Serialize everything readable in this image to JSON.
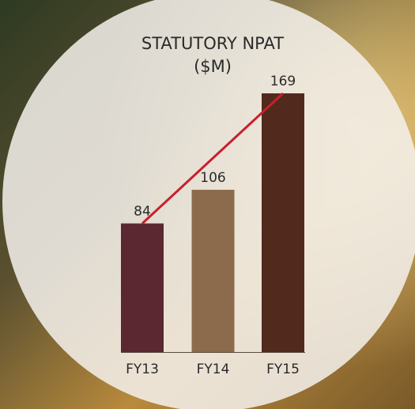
{
  "chart_data": {
    "type": "bar",
    "title": "STATUTORY NPAT",
    "subtitle": "($M)",
    "categories": [
      "FY13",
      "FY14",
      "FY15"
    ],
    "values": [
      84,
      106,
      169
    ],
    "colors": [
      "#5b2730",
      "#8b6b4b",
      "#512a1d"
    ],
    "trend_line_color": "#c8202c"
  }
}
